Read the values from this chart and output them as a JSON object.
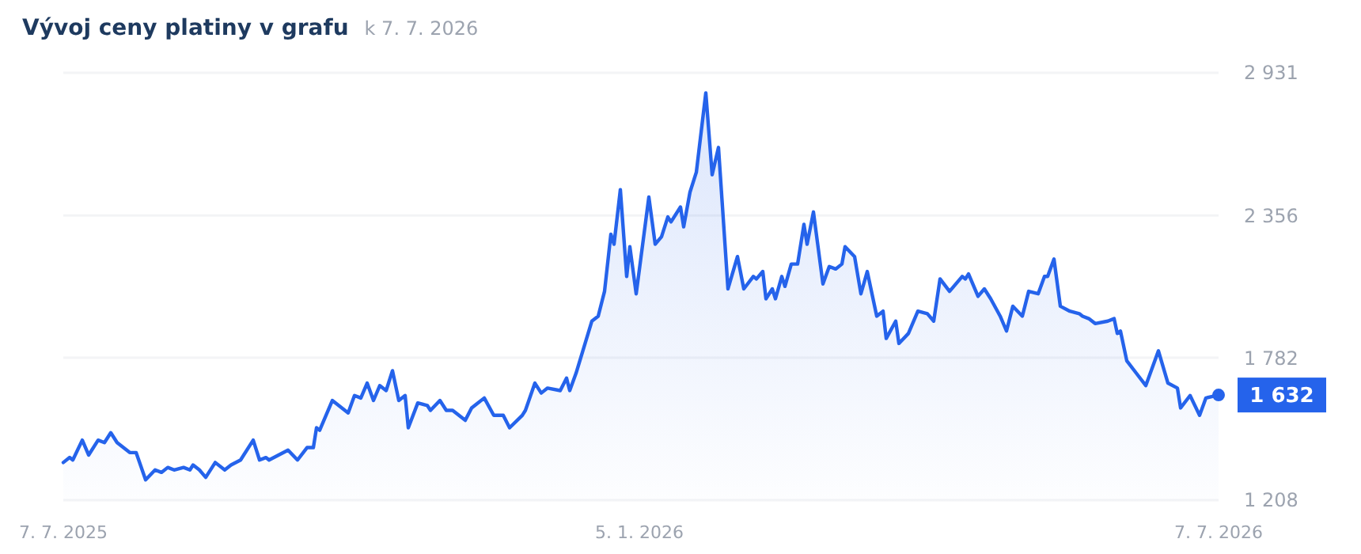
{
  "chart_data": {
    "type": "area",
    "title": "Vývoj ceny platiny v grafu",
    "subtitle": "k 7. 7. 2026",
    "x": [
      "2025-07-07",
      "2025-07-09",
      "2025-07-10",
      "2025-07-13",
      "2025-07-15",
      "2025-07-18",
      "2025-07-20",
      "2025-07-22",
      "2025-07-24",
      "2025-07-28",
      "2025-07-30",
      "2025-08-02",
      "2025-08-05",
      "2025-08-07",
      "2025-08-09",
      "2025-08-11",
      "2025-08-14",
      "2025-08-16",
      "2025-08-17",
      "2025-08-19",
      "2025-08-21",
      "2025-08-24",
      "2025-08-27",
      "2025-08-29",
      "2025-09-01",
      "2025-09-05",
      "2025-09-07",
      "2025-09-09",
      "2025-09-10",
      "2025-09-13",
      "2025-09-16",
      "2025-09-19",
      "2025-09-22",
      "2025-09-24",
      "2025-09-25",
      "2025-09-26",
      "2025-09-30",
      "2025-10-05",
      "2025-10-07",
      "2025-10-09",
      "2025-10-11",
      "2025-10-13",
      "2025-10-15",
      "2025-10-17",
      "2025-10-19",
      "2025-10-21",
      "2025-10-23",
      "2025-10-24",
      "2025-10-27",
      "2025-10-30",
      "2025-10-31",
      "2025-11-03",
      "2025-11-05",
      "2025-11-07",
      "2025-11-09",
      "2025-11-11",
      "2025-11-13",
      "2025-11-17",
      "2025-11-20",
      "2025-11-23",
      "2025-11-25",
      "2025-11-29",
      "2025-11-30",
      "2025-12-03",
      "2025-12-05",
      "2025-12-07",
      "2025-12-11",
      "2025-12-13",
      "2025-12-14",
      "2025-12-16",
      "2025-12-21",
      "2025-12-23",
      "2025-12-25",
      "2025-12-27",
      "2025-12-28",
      "2025-12-30",
      "2026-01-01",
      "2026-01-02",
      "2026-01-04",
      "2026-01-08",
      "2026-01-10",
      "2026-01-12",
      "2026-01-14",
      "2026-01-15",
      "2026-01-18",
      "2026-01-19",
      "2026-01-21",
      "2026-01-23",
      "2026-01-26",
      "2026-01-28",
      "2026-01-30",
      "2026-02-02",
      "2026-02-05",
      "2026-02-07",
      "2026-02-10",
      "2026-02-11",
      "2026-02-13",
      "2026-02-14",
      "2026-02-16",
      "2026-02-17",
      "2026-02-19",
      "2026-02-20",
      "2026-02-22",
      "2026-02-24",
      "2026-02-26",
      "2026-02-27",
      "2026-03-01",
      "2026-03-04",
      "2026-03-06",
      "2026-03-08",
      "2026-03-10",
      "2026-03-11",
      "2026-03-14",
      "2026-03-16",
      "2026-03-18",
      "2026-03-21",
      "2026-03-23",
      "2026-03-24",
      "2026-03-27",
      "2026-03-28",
      "2026-03-31",
      "2026-04-03",
      "2026-04-06",
      "2026-04-08",
      "2026-04-10",
      "2026-04-13",
      "2026-04-17",
      "2026-04-18",
      "2026-04-19",
      "2026-04-22",
      "2026-04-24",
      "2026-04-26",
      "2026-04-29",
      "2026-05-01",
      "2026-05-03",
      "2026-05-06",
      "2026-05-08",
      "2026-05-11",
      "2026-05-13",
      "2026-05-14",
      "2026-05-16",
      "2026-05-18",
      "2026-05-21",
      "2026-05-24",
      "2026-05-25",
      "2026-05-27",
      "2026-05-29",
      "2026-06-02",
      "2026-06-04",
      "2026-06-05",
      "2026-06-06",
      "2026-06-08",
      "2026-06-11",
      "2026-06-14",
      "2026-06-18",
      "2026-06-21",
      "2026-06-24",
      "2026-06-25",
      "2026-06-28",
      "2026-07-01",
      "2026-07-03",
      "2026-07-07"
    ],
    "series": [
      {
        "color": "#2563eb",
        "values": [
          1360,
          1380,
          1370,
          1450,
          1390,
          1450,
          1440,
          1480,
          1440,
          1400,
          1400,
          1290,
          1330,
          1320,
          1340,
          1330,
          1340,
          1330,
          1350,
          1330,
          1300,
          1360,
          1330,
          1350,
          1370,
          1450,
          1370,
          1380,
          1370,
          1390,
          1410,
          1370,
          1420,
          1420,
          1500,
          1490,
          1610,
          1560,
          1630,
          1620,
          1680,
          1610,
          1670,
          1650,
          1730,
          1610,
          1630,
          1500,
          1600,
          1590,
          1570,
          1610,
          1570,
          1570,
          1550,
          1530,
          1580,
          1620,
          1550,
          1550,
          1500,
          1550,
          1570,
          1680,
          1640,
          1660,
          1650,
          1700,
          1650,
          1720,
          1930,
          1950,
          2050,
          2280,
          2240,
          2460,
          2110,
          2230,
          2040,
          2430,
          2240,
          2270,
          2350,
          2330,
          2390,
          2310,
          2450,
          2530,
          2850,
          2520,
          2630,
          2060,
          2190,
          2060,
          2110,
          2100,
          2130,
          2020,
          2060,
          2020,
          2110,
          2070,
          2160,
          2160,
          2320,
          2240,
          2370,
          2080,
          2150,
          2140,
          2160,
          2230,
          2190,
          2040,
          2130,
          1950,
          1970,
          1860,
          1930,
          1840,
          1880,
          1970,
          1960,
          1930,
          2100,
          2050,
          2110,
          2100,
          2120,
          2030,
          2060,
          2020,
          1950,
          1890,
          1990,
          1950,
          2050,
          2040,
          2110,
          2110,
          2180,
          1990,
          1970,
          1960,
          1950,
          1940,
          1920,
          1930,
          1940,
          1880,
          1890,
          1770,
          1720,
          1670,
          1810,
          1680,
          1660,
          1580,
          1630,
          1550,
          1620,
          1632
        ]
      }
    ],
    "xlim": [
      "2025-07-07",
      "2026-07-07"
    ],
    "xticks": [
      {
        "value": "2025-07-07",
        "label": "7. 7. 2025"
      },
      {
        "value": "2026-01-05",
        "label": "5. 1. 2026"
      },
      {
        "value": "2026-07-07",
        "label": "7. 7. 2026"
      }
    ],
    "ylim": [
      1208,
      2931
    ],
    "yticks": [
      {
        "value": 1208,
        "label": "1 208"
      },
      {
        "value": 1782,
        "label": "1 782"
      },
      {
        "value": 2356,
        "label": "2 356"
      },
      {
        "value": 2931,
        "label": "2 931"
      }
    ],
    "grid": "y",
    "annotations": [
      {
        "text": "1 632",
        "x": "2026-07-07",
        "y": 1632
      }
    ]
  }
}
